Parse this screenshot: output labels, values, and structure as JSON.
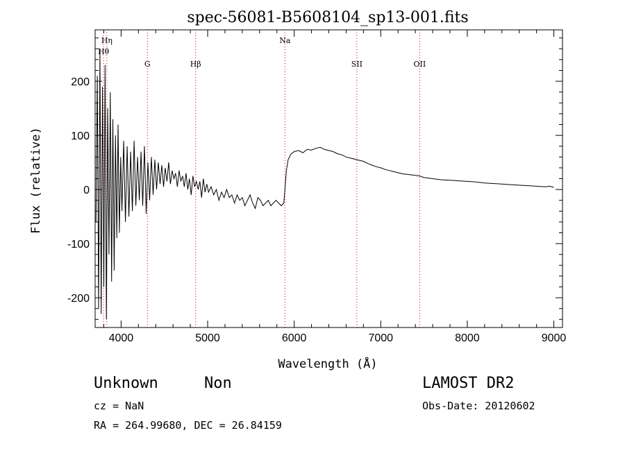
{
  "chart_data": {
    "type": "line",
    "title": "spec-56081-B5608104_sp13-001.fits",
    "xlabel": "Wavelength (Å)",
    "ylabel": "Flux (relative)",
    "xlim": [
      3700,
      9100
    ],
    "ylim": [
      -255,
      295
    ],
    "xticks": [
      "4000",
      "5000",
      "6000",
      "7000",
      "8000",
      "9000"
    ],
    "yticks": [
      "-200",
      "-100",
      "0",
      "100",
      "200"
    ],
    "grid": false,
    "line_color": "#000000",
    "marker_color": "#cc0000",
    "lines": [
      {
        "name": "Hη",
        "x": 3835
      },
      {
        "name": "Hθ",
        "x": 3797
      },
      {
        "name": "G",
        "x": 4304
      },
      {
        "name": "Hβ",
        "x": 4861
      },
      {
        "name": "Na",
        "x": 5893
      },
      {
        "name": "SII",
        "x": 6724
      },
      {
        "name": "OII",
        "x": 7450
      }
    ],
    "series": [
      {
        "x": [
          3710,
          3725,
          3740,
          3755,
          3770,
          3785,
          3800,
          3815,
          3830,
          3845,
          3860,
          3875,
          3890,
          3905,
          3920,
          3935,
          3950,
          3965,
          3980,
          3995,
          4010,
          4030,
          4050,
          4070,
          4090,
          4110,
          4130,
          4150,
          4170,
          4190,
          4210,
          4230,
          4250,
          4270,
          4290,
          4310,
          4330,
          4350,
          4370,
          4390,
          4410,
          4430,
          4450,
          4470,
          4490,
          4510,
          4530,
          4550,
          4570,
          4590,
          4610,
          4630,
          4650,
          4670,
          4690,
          4710,
          4730,
          4750,
          4770,
          4790,
          4810,
          4830,
          4850,
          4870,
          4890,
          4910,
          4930,
          4950,
          4970,
          4990,
          5010,
          5040,
          5070,
          5100,
          5130,
          5160,
          5190,
          5220,
          5250,
          5280,
          5310,
          5340,
          5370,
          5400,
          5430,
          5460,
          5490,
          5520,
          5550,
          5580,
          5610,
          5640,
          5670,
          5700,
          5730,
          5760,
          5790,
          5820,
          5850,
          5880,
          5895,
          5910,
          5930,
          5960,
          6000,
          6050,
          6100,
          6150,
          6200,
          6250,
          6300,
          6350,
          6400,
          6450,
          6500,
          6550,
          6600,
          6650,
          6700,
          6750,
          6800,
          6850,
          6900,
          6950,
          7000,
          7050,
          7100,
          7150,
          7200,
          7250,
          7300,
          7350,
          7400,
          7450,
          7500,
          7600,
          7700,
          7800,
          7900,
          8000,
          8100,
          8200,
          8300,
          8400,
          8500,
          8600,
          8700,
          8800,
          8900,
          8950,
          9000
        ],
        "y": [
          -60,
          210,
          -220,
          260,
          -230,
          190,
          -180,
          230,
          -240,
          150,
          -120,
          180,
          -170,
          130,
          -150,
          100,
          -90,
          120,
          -80,
          60,
          -40,
          90,
          -60,
          80,
          -50,
          70,
          -40,
          90,
          -30,
          60,
          -20,
          70,
          -30,
          80,
          -45,
          50,
          -20,
          60,
          -10,
          55,
          0,
          50,
          10,
          45,
          5,
          40,
          15,
          50,
          10,
          35,
          20,
          30,
          5,
          35,
          15,
          25,
          5,
          30,
          0,
          20,
          -10,
          25,
          5,
          15,
          0,
          15,
          -15,
          20,
          -5,
          10,
          -5,
          5,
          -10,
          0,
          -20,
          -5,
          -15,
          0,
          -15,
          -10,
          -25,
          -10,
          -20,
          -15,
          -30,
          -20,
          -10,
          -25,
          -35,
          -15,
          -20,
          -30,
          -25,
          -20,
          -30,
          -25,
          -20,
          -25,
          -30,
          -25,
          5,
          35,
          55,
          65,
          70,
          72,
          68,
          74,
          73,
          76,
          78,
          74,
          72,
          70,
          66,
          64,
          60,
          58,
          56,
          54,
          52,
          48,
          45,
          42,
          40,
          37,
          35,
          33,
          31,
          29,
          28,
          27,
          26,
          25,
          22,
          20,
          18,
          17,
          16,
          15,
          14,
          12,
          11,
          10,
          9,
          8,
          7,
          6,
          5,
          6,
          4
        ]
      }
    ]
  },
  "footer": {
    "class_label": "Unknown",
    "subclass_label": "Non",
    "survey_label": "LAMOST DR2",
    "cz_text": "cz = NaN",
    "obs_date_text": "Obs-Date: 20120602",
    "radec_text": "RA = 264.99680, DEC =  26.84159"
  }
}
